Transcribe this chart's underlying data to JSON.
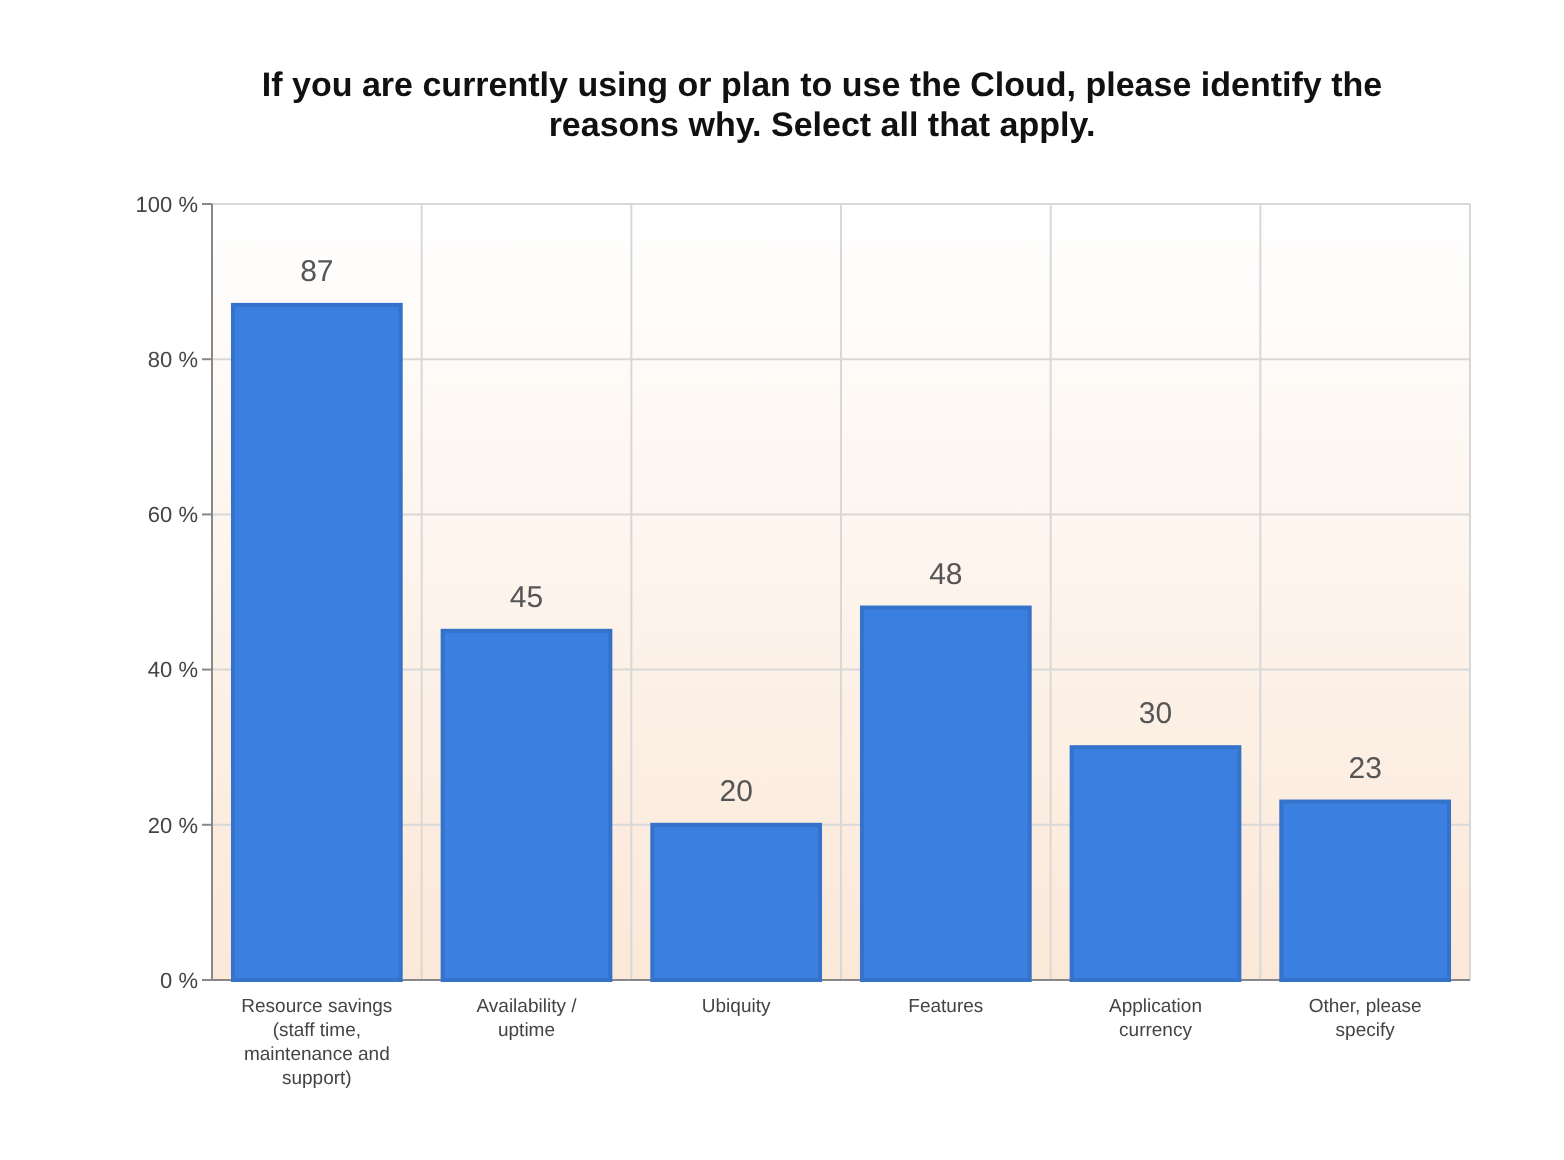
{
  "chart_data": {
    "type": "bar",
    "title": "If you are currently using or plan to use the Cloud, please identify the reasons why. Select all that apply.",
    "categories": [
      "Resource savings (staff time, maintenance and support)",
      "Availability / uptime",
      "Ubiquity",
      "Features",
      "Application currency",
      "Other, please specify"
    ],
    "values": [
      87,
      45,
      20,
      48,
      30,
      23
    ],
    "color": "#3b7fe0",
    "ylim": [
      0,
      100
    ],
    "yticks": [
      {
        "value": 0,
        "label": "0 %"
      },
      {
        "value": 20,
        "label": "20 %"
      },
      {
        "value": 40,
        "label": "40 %"
      },
      {
        "value": 60,
        "label": "60 %"
      },
      {
        "value": 80,
        "label": "80 %"
      },
      {
        "value": 100,
        "label": "100 %"
      }
    ],
    "grid": true,
    "data_labels": true
  }
}
